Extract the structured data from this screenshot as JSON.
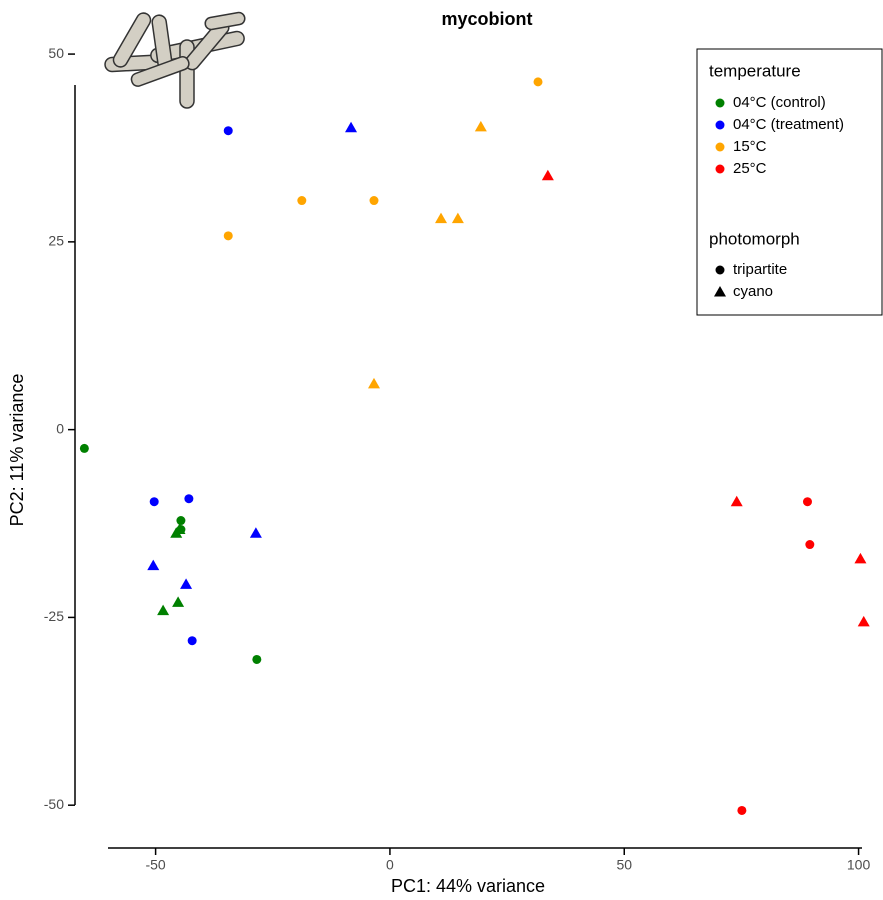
{
  "chart_data": {
    "type": "scatter",
    "title": "mycobiont",
    "x_label": "PC1: 44% variance",
    "y_label": "PC2: 11% variance",
    "xlim": [
      -67.2,
      105
    ],
    "ylim": [
      -55.7,
      57.2
    ],
    "xticks": [
      -50,
      0,
      50,
      100
    ],
    "yticks": [
      -50,
      -25,
      0,
      25,
      50
    ],
    "legend_title": "temperature",
    "series": [
      {
        "name": "04°C (control)",
        "color": "#008000",
        "x": [
          -65.2,
          -44.6,
          -44.6,
          -28.4,
          -45.6,
          -44.9,
          -48.4,
          -45.2
        ],
        "values": [
          -2.5,
          -12.1,
          -13.3,
          -30.6,
          -13.8,
          -13.3,
          -24.1,
          -23.0
        ],
        "shapes": [
          "circle",
          "circle",
          "circle",
          "circle",
          "triangle",
          "triangle",
          "triangle",
          "triangle"
        ]
      },
      {
        "name": "04°C (treatment)",
        "color": "#0000ff",
        "x": [
          -50.3,
          -42.9,
          -42.2,
          -34.5,
          -8.3,
          -28.6,
          -50.5,
          -43.5
        ],
        "values": [
          -9.6,
          -9.2,
          -28.1,
          39.8,
          40.2,
          -13.8,
          -18.1,
          -20.6
        ],
        "shapes": [
          "circle",
          "circle",
          "circle",
          "circle",
          "triangle",
          "triangle",
          "triangle",
          "triangle"
        ]
      },
      {
        "name": "15°C",
        "color": "#ffa500",
        "x": [
          -34.5,
          -18.8,
          -3.4,
          31.6,
          19.4,
          10.9,
          14.5,
          -3.4
        ],
        "values": [
          25.8,
          30.5,
          30.5,
          46.3,
          40.3,
          28.1,
          28.1,
          6.1
        ],
        "shapes": [
          "circle",
          "circle",
          "circle",
          "circle",
          "triangle",
          "triangle",
          "triangle",
          "triangle"
        ]
      },
      {
        "name": "25°C",
        "color": "#ff0000",
        "x": [
          89.1,
          89.6,
          75.1,
          33.7,
          74.0,
          100.4,
          101.1
        ],
        "values": [
          -9.6,
          -15.3,
          -50.7,
          33.8,
          -9.6,
          -17.2,
          -25.6
        ],
        "shapes": [
          "circle",
          "circle",
          "circle",
          "triangle",
          "triangle",
          "triangle",
          "triangle"
        ]
      }
    ],
    "shape_legend": {
      "title": "photomorph",
      "items": [
        {
          "name": "tripartite",
          "shape": "circle"
        },
        {
          "name": "cyano",
          "shape": "triangle"
        }
      ]
    }
  }
}
